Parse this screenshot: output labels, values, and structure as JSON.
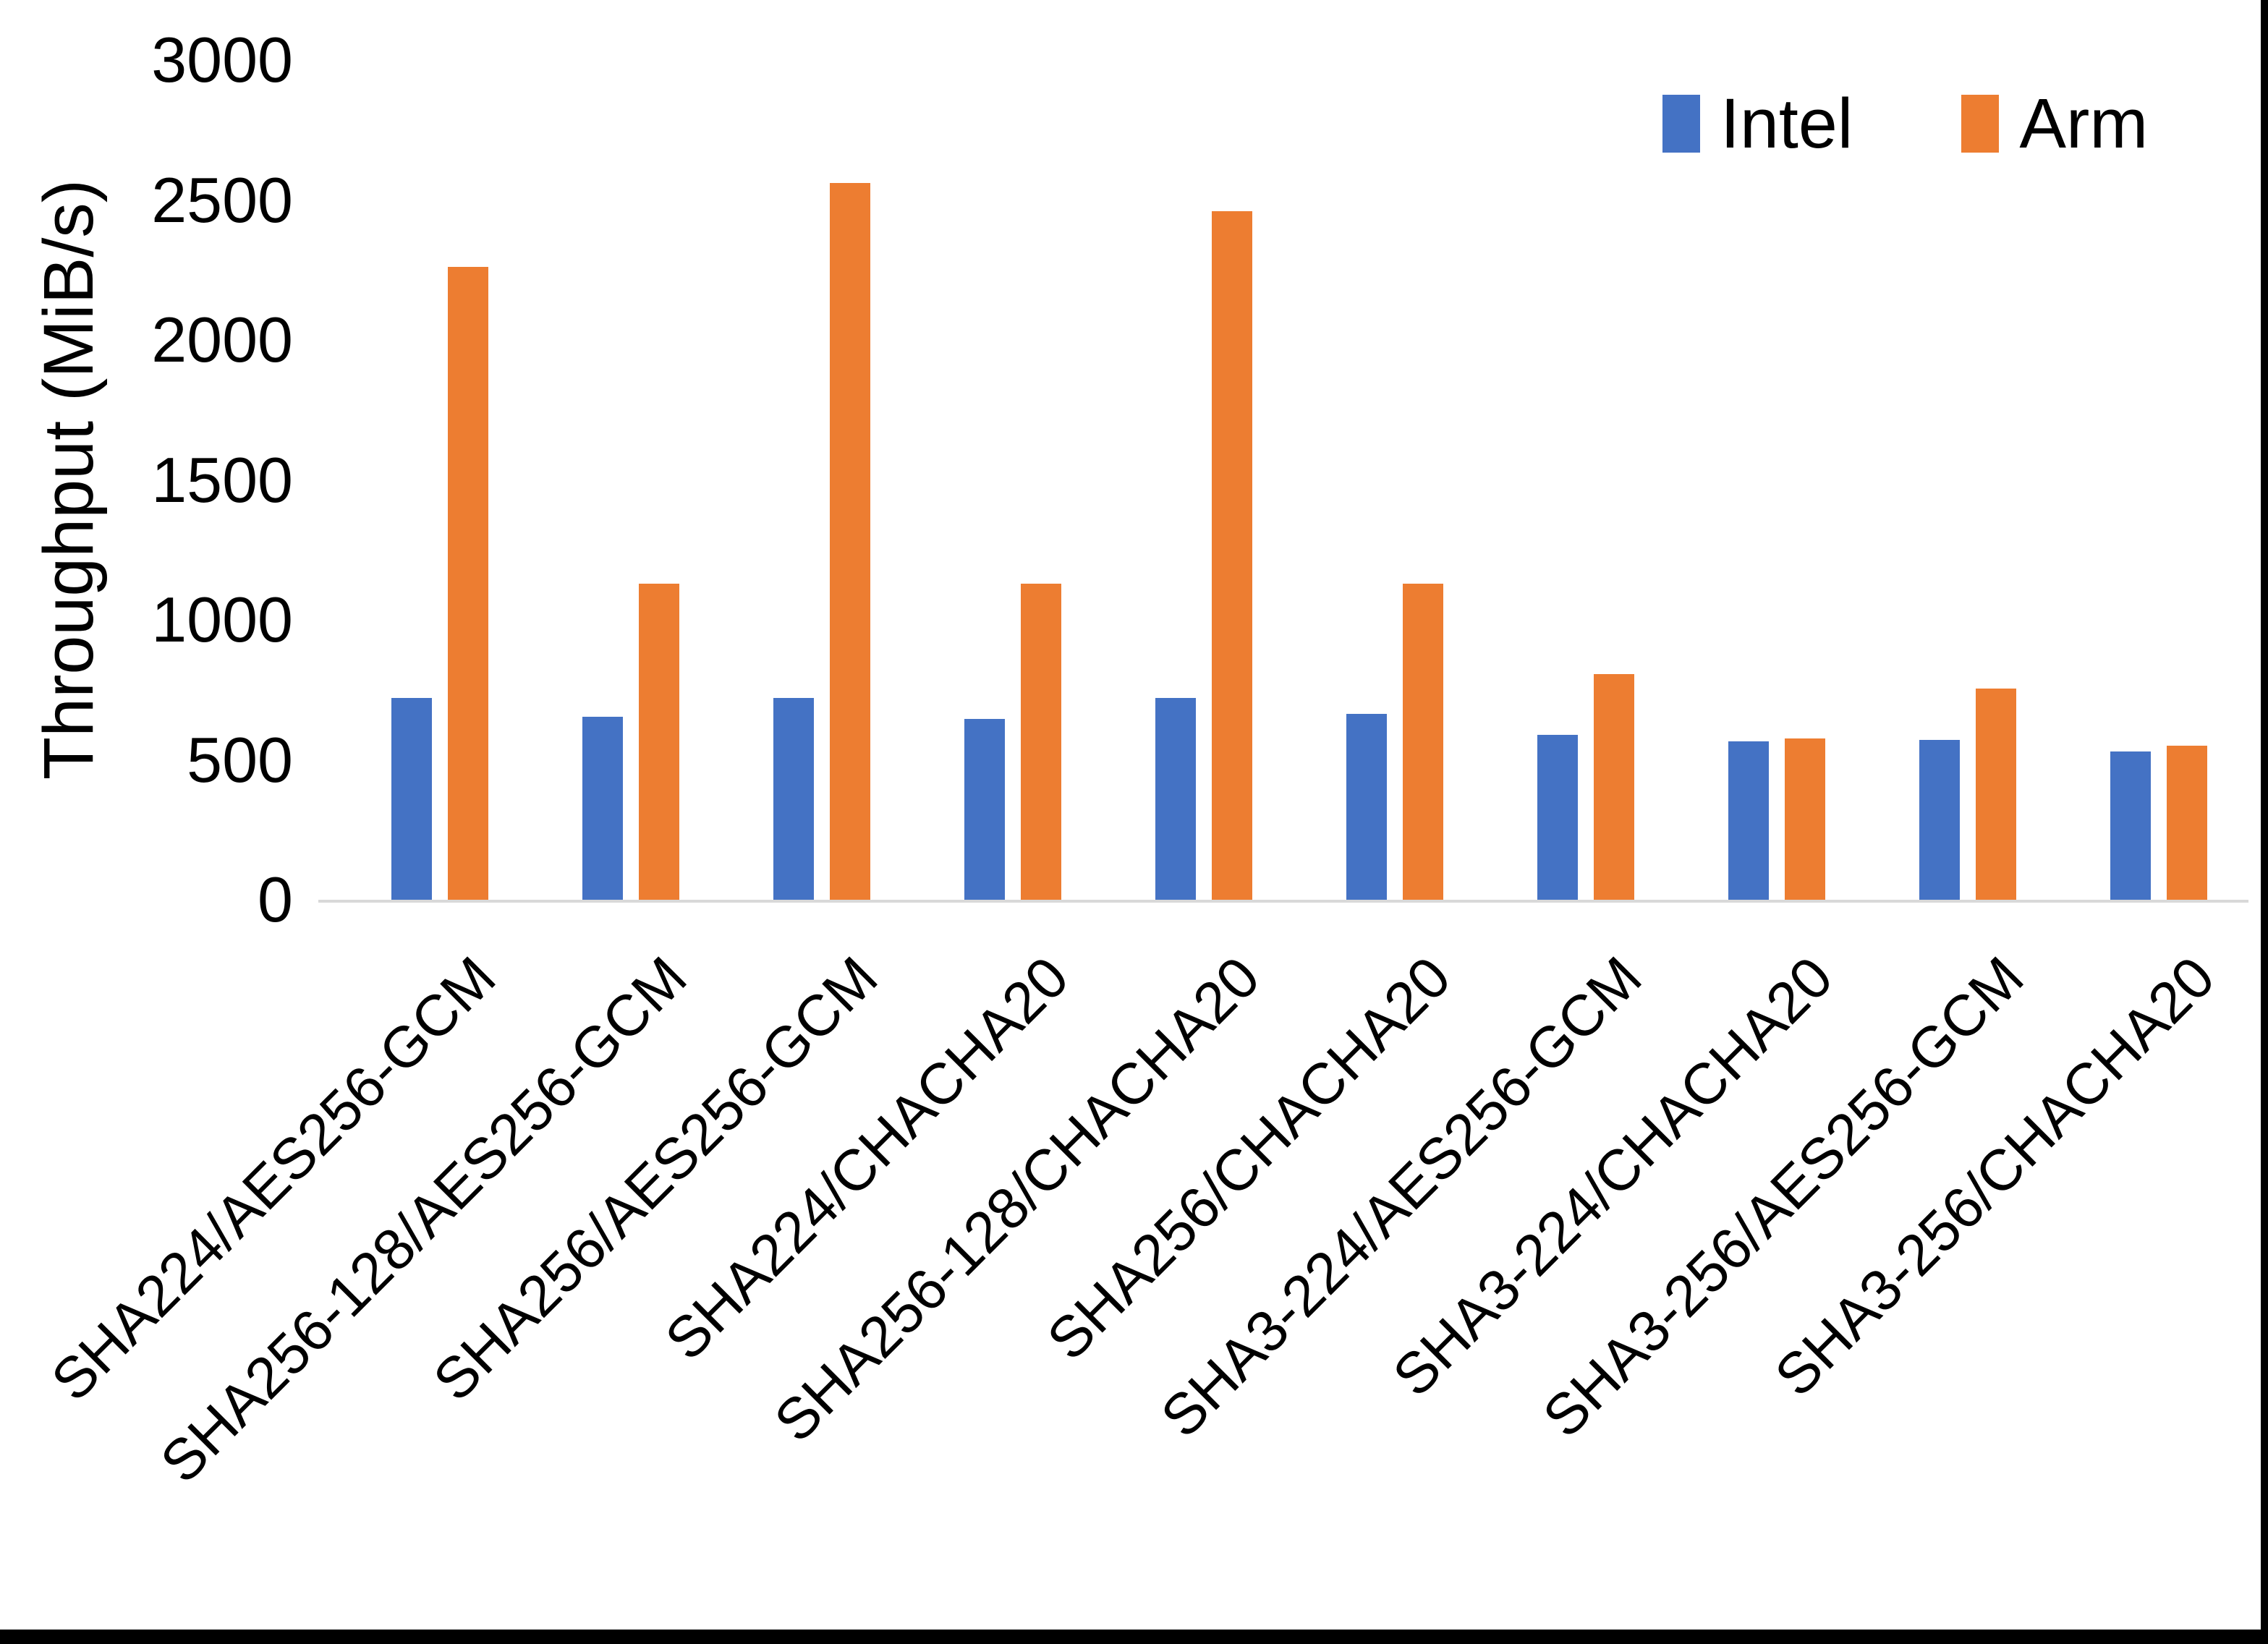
{
  "chart_data": {
    "type": "bar",
    "title": "",
    "xlabel": "",
    "ylabel": "Throughput (MiB/s)",
    "ylim": [
      0,
      3000
    ],
    "ytick_step": 500,
    "grid": false,
    "legend_position": "top-right",
    "categories": [
      "SHA224/AES256-GCM",
      "SHA256-128/AES256-GCM",
      "SHA256/AES256-GCM",
      "SHA224/CHACHA20",
      "SHA256-128/CHACHA20",
      "SHA256/CHACHA20",
      "SHA3-224/AES256-GCM",
      "SHA3-224/CHACHA20",
      "SHA3-256/AES256-GCM",
      "SHA3-256/CHACHA20"
    ],
    "series": [
      {
        "name": "Intel",
        "color": "#4472C4",
        "values": [
          720,
          655,
          720,
          645,
          720,
          665,
          590,
          565,
          570,
          530
        ]
      },
      {
        "name": "Arm",
        "color": "#ED7D31",
        "values": [
          2260,
          1130,
          2560,
          1130,
          2460,
          1130,
          805,
          575,
          755,
          550
        ]
      }
    ]
  },
  "page": {
    "background_color": "#FFFFFF",
    "border_color": "#000000",
    "axis_line_color": "#D9D9D9"
  }
}
